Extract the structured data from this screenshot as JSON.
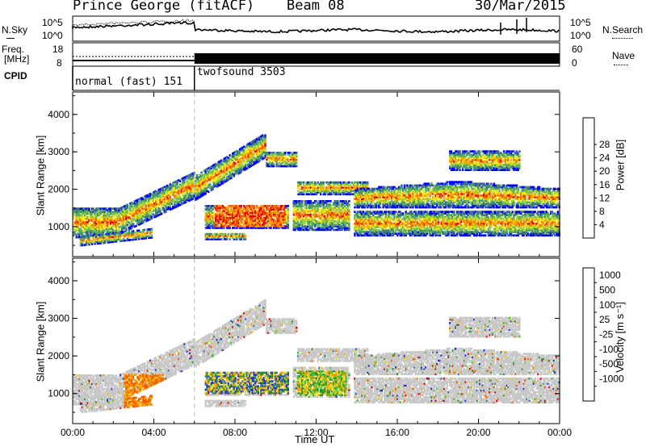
{
  "header": {
    "station": "Prince George (fitACF)",
    "beam": "Beam 08",
    "date": "30/Mar/2015"
  },
  "status_panel": {
    "nsky_label": "N.Sky",
    "nsearch_label": "N.Search",
    "noise_ticks_left": [
      "10^5",
      "10^0"
    ],
    "noise_ticks_right": [
      "10^5",
      "10^0"
    ],
    "freq_label_1": "Freq.",
    "freq_label_2": "[MHz]",
    "freq_ticks": [
      "18",
      "8"
    ],
    "nave_label": "Nave",
    "nave_ticks": [
      "60",
      "0"
    ],
    "cpid_label": "CPID",
    "programs": [
      {
        "name": "normal (fast) 151",
        "start_hour": 0,
        "end_hour": 6
      },
      {
        "name": "twofsound 3503",
        "start_hour": 6,
        "end_hour": 24
      }
    ]
  },
  "colors": {
    "power": [
      "#0000ff",
      "#3a5aa8",
      "#3f8f6e",
      "#5cb35c",
      "#a3d63a",
      "#f5e615",
      "#f5a300",
      "#f06000",
      "#e00000"
    ],
    "velocity": [
      "#2030d0",
      "#3a6ea8",
      "#2f8f2f",
      "#50c030",
      "#c8c8c8",
      "#e8d828",
      "#f5a000",
      "#f06000",
      "#e00000"
    ]
  },
  "chart_data": [
    {
      "type": "heatmap",
      "panel": "power",
      "ylabel": "Slant Range [km]",
      "xlabel": "",
      "xlim": [
        0,
        24
      ],
      "ylim": [
        200,
        4600
      ],
      "x_ticks": [
        0,
        4,
        8,
        12,
        16,
        20,
        24
      ],
      "y_ticks": [
        1000,
        2000,
        3000,
        4000
      ],
      "colorbar": {
        "label": "Power [dB]",
        "ticks": [
          "4",
          "8",
          "12",
          "16",
          "20",
          "24",
          "28"
        ]
      }
    },
    {
      "type": "heatmap",
      "panel": "velocity",
      "ylabel": "Slant Range [km]",
      "xlabel": "Time UT",
      "xlim": [
        0,
        24
      ],
      "ylim": [
        200,
        4600
      ],
      "x_ticks": [
        0,
        4,
        8,
        12,
        16,
        20,
        24
      ],
      "x_tick_labels": [
        "00:00",
        "04:00",
        "08:00",
        "12:00",
        "16:00",
        "20:00",
        "00:00"
      ],
      "y_ticks": [
        1000,
        2000,
        3000,
        4000
      ],
      "colorbar": {
        "label": "Velocity [m s⁻¹]",
        "ticks": [
          "1000",
          "500",
          "100",
          "25",
          "-25",
          "-100",
          "-500",
          "-1000"
        ]
      }
    }
  ]
}
